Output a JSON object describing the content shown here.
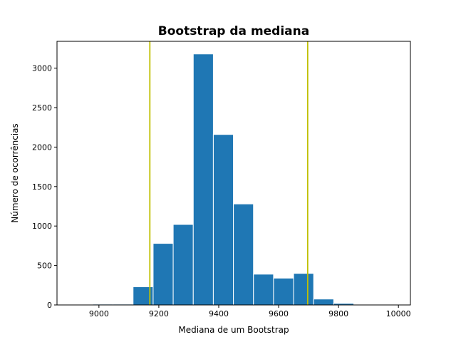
{
  "chart_data": {
    "type": "bar",
    "title": "Bootstrap da mediana",
    "xlabel": "Mediana de um Bootstrap",
    "ylabel": "Número de ocorrências",
    "xlim": [
      8860,
      10040
    ],
    "ylim": [
      0,
      3340
    ],
    "grid": false,
    "bar_color": "#1f77b4",
    "bar_edge_color": "#ffffff",
    "line_color": "#bfbf00",
    "bins": [
      {
        "x0": 8980,
        "x1": 9047,
        "count": 10
      },
      {
        "x0": 9047,
        "x1": 9114,
        "count": 10
      },
      {
        "x0": 9114,
        "x1": 9181,
        "count": 230
      },
      {
        "x0": 9181,
        "x1": 9248,
        "count": 780
      },
      {
        "x0": 9248,
        "x1": 9315,
        "count": 1020
      },
      {
        "x0": 9315,
        "x1": 9382,
        "count": 3180
      },
      {
        "x0": 9382,
        "x1": 9449,
        "count": 2160
      },
      {
        "x0": 9449,
        "x1": 9516,
        "count": 1280
      },
      {
        "x0": 9516,
        "x1": 9583,
        "count": 390
      },
      {
        "x0": 9583,
        "x1": 9650,
        "count": 340
      },
      {
        "x0": 9650,
        "x1": 9717,
        "count": 400
      },
      {
        "x0": 9717,
        "x1": 9784,
        "count": 75
      },
      {
        "x0": 9784,
        "x1": 9851,
        "count": 20
      }
    ],
    "vlines": [
      9170,
      9697
    ],
    "xticks": [
      {
        "value": 9000,
        "label": "9000"
      },
      {
        "value": 9200,
        "label": "9200"
      },
      {
        "value": 9400,
        "label": "9400"
      },
      {
        "value": 9600,
        "label": "9600"
      },
      {
        "value": 9800,
        "label": "9800"
      },
      {
        "value": 10000,
        "label": "10000"
      }
    ],
    "yticks": [
      {
        "value": 0,
        "label": "0"
      },
      {
        "value": 500,
        "label": "500"
      },
      {
        "value": 1000,
        "label": "1000"
      },
      {
        "value": 1500,
        "label": "1500"
      },
      {
        "value": 2000,
        "label": "2000"
      },
      {
        "value": 2500,
        "label": "2500"
      },
      {
        "value": 3000,
        "label": "3000"
      }
    ]
  }
}
